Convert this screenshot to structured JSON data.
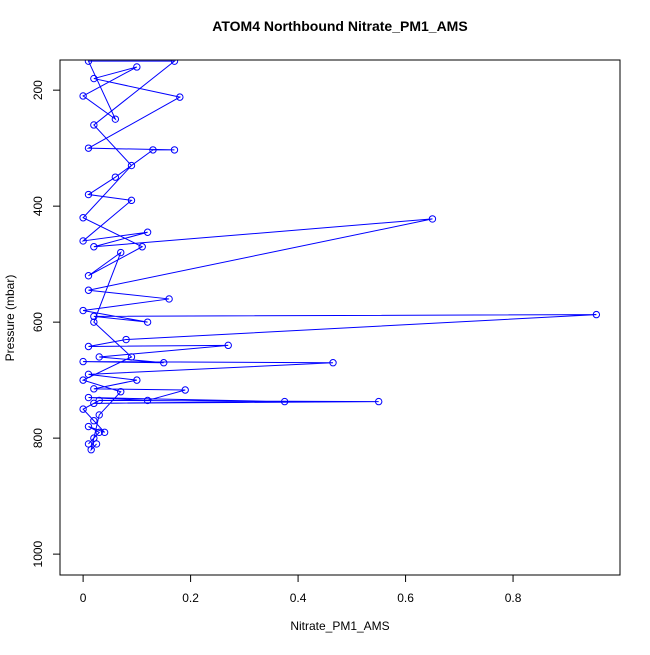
{
  "chart_data": {
    "type": "line",
    "title": "ATOM4 Northbound Nitrate_PM1_AMS",
    "x_label": "Nitrate_PM1_AMS",
    "y_label": "Pressure (mbar)",
    "color": "#0000ff",
    "markers": true,
    "y_reversed": true,
    "xlim": [
      -0.043,
      0.999
    ],
    "ylim": [
      148,
      1036
    ],
    "xticks": [
      0,
      0.2,
      0.4,
      0.6,
      0.8
    ],
    "yticks": [
      200,
      400,
      600,
      800,
      1000
    ],
    "x": [
      0.01,
      0.02,
      0.03,
      0.01,
      0.04,
      0.02,
      0.0,
      0.03,
      0.55,
      0.02,
      0.375,
      0.01,
      0.12,
      0.19,
      0.02,
      0.1,
      0.01,
      0.465,
      0.0,
      0.15,
      0.03,
      0.27,
      0.01,
      0.08,
      0.955,
      0.02,
      0.12,
      0.0,
      0.16,
      0.01,
      0.65,
      0.02,
      0.12,
      0.0,
      0.09,
      0.01,
      0.06,
      0.13,
      0.17,
      0.01,
      0.18,
      0.02,
      0.1,
      0.0,
      0.06,
      0.01,
      0.17,
      0.02,
      0.09,
      0.0,
      0.11,
      0.01,
      0.07,
      0.02,
      0.09,
      0.0,
      0.07,
      0.03,
      0.015,
      0.025
    ],
    "values": [
      810,
      800,
      790,
      780,
      790,
      770,
      750,
      735,
      737,
      740,
      737,
      730,
      735,
      717,
      715,
      700,
      690,
      670,
      668,
      670,
      660,
      640,
      642,
      630,
      587,
      590,
      600,
      580,
      560,
      545,
      422,
      470,
      445,
      460,
      390,
      380,
      350,
      303,
      303,
      300,
      212,
      180,
      160,
      210,
      250,
      150,
      150,
      260,
      330,
      420,
      470,
      520,
      480,
      600,
      660,
      700,
      720,
      760,
      820,
      810
    ]
  }
}
